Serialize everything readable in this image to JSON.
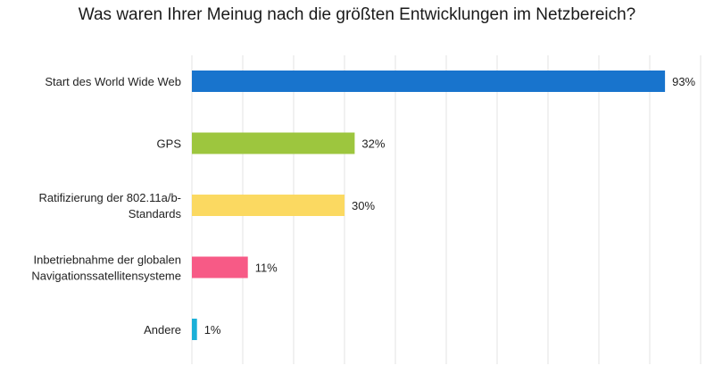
{
  "chart_data": {
    "type": "bar",
    "orientation": "horizontal",
    "title": "Was waren Ihrer Meinug nach die größten Entwicklungen im Netzbereich?",
    "categories": [
      "Start des World Wide Web",
      "GPS",
      "Ratifizierung der 802.11a/b-Standards",
      "Inbetriebnahme der globalen Navigationssatellitensysteme",
      "Andere"
    ],
    "category_lines": [
      [
        "Start des World Wide Web"
      ],
      [
        "GPS"
      ],
      [
        "Ratifizierung der 802.11a/b-",
        "Standards"
      ],
      [
        "Inbetriebnahme der globalen",
        "Navigationssatellitensysteme"
      ],
      [
        "Andere"
      ]
    ],
    "values": [
      93,
      32,
      30,
      11,
      1
    ],
    "data_labels": [
      "93%",
      "32%",
      "30%",
      "11%",
      "1%"
    ],
    "colors": [
      "#1874cd",
      "#9dc63e",
      "#fbd961",
      "#f75a86",
      "#1bb0d8"
    ],
    "xlim": [
      0,
      100
    ],
    "grid_step": 10,
    "grid": true,
    "grid_color": "#e3e3e3",
    "xlabel": "",
    "ylabel": ""
  }
}
